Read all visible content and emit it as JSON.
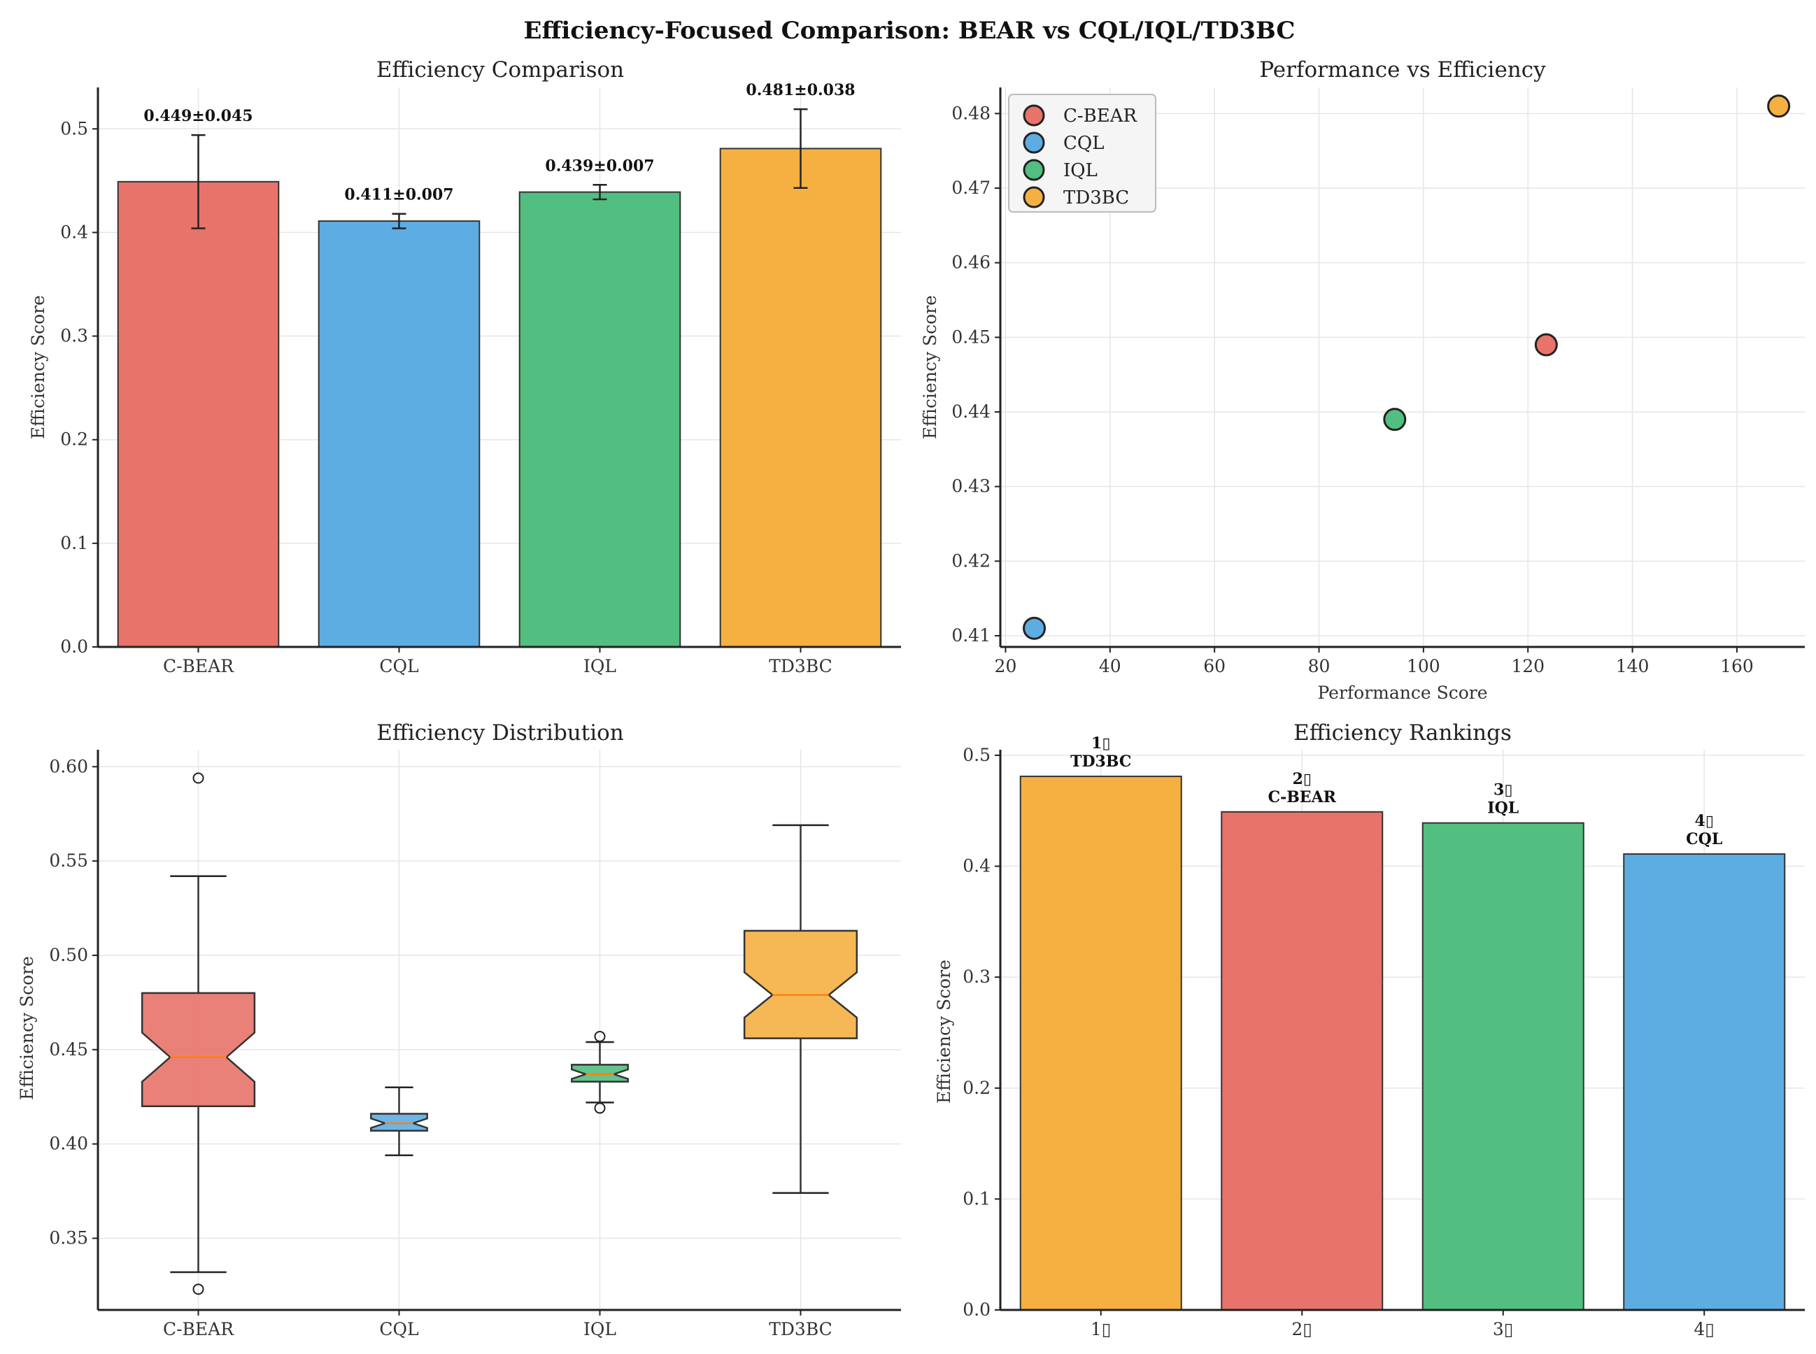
{
  "suptitle": "Efficiency-Focused Comparison: BEAR vs CQL/IQL/TD3BC",
  "colors": {
    "C-BEAR": "#e8736a",
    "CQL": "#5dade2",
    "IQL": "#52be80",
    "TD3BC": "#f5b041",
    "median": "#ff7f0e"
  },
  "chart_data": [
    {
      "type": "bar",
      "title": "Efficiency Comparison",
      "xlabel": "",
      "ylabel": "Efficiency Score",
      "categories": [
        "C-BEAR",
        "CQL",
        "IQL",
        "TD3BC"
      ],
      "values": [
        0.449,
        0.411,
        0.439,
        0.481
      ],
      "errors": [
        0.045,
        0.007,
        0.007,
        0.038
      ],
      "value_labels": [
        "0.449±0.045",
        "0.411±0.007",
        "0.439±0.007",
        "0.481±0.038"
      ],
      "ylim": [
        0,
        0.54
      ],
      "yticks": [
        "0.0",
        "0.1",
        "0.2",
        "0.3",
        "0.4",
        "0.5"
      ],
      "grid": true
    },
    {
      "type": "scatter",
      "title": "Performance vs Efficiency",
      "xlabel": "Performance Score",
      "ylabel": "Efficiency Score",
      "series": [
        {
          "name": "C-BEAR",
          "x": [
            123.5
          ],
          "y": [
            0.449
          ]
        },
        {
          "name": "CQL",
          "x": [
            25.5
          ],
          "y": [
            0.411
          ]
        },
        {
          "name": "IQL",
          "x": [
            94.5
          ],
          "y": [
            0.439
          ]
        },
        {
          "name": "TD3BC",
          "x": [
            168
          ],
          "y": [
            0.481
          ]
        }
      ],
      "xlim": [
        19,
        173
      ],
      "ylim": [
        0.4085,
        0.4835
      ],
      "xticks": [
        "20",
        "40",
        "60",
        "80",
        "100",
        "120",
        "140",
        "160"
      ],
      "yticks": [
        "0.41",
        "0.42",
        "0.43",
        "0.44",
        "0.45",
        "0.46",
        "0.47",
        "0.48"
      ],
      "legend": "top-left",
      "grid": true
    },
    {
      "type": "box",
      "title": "Efficiency Distribution",
      "xlabel": "",
      "ylabel": "Efficiency Score",
      "categories": [
        "C-BEAR",
        "CQL",
        "IQL",
        "TD3BC"
      ],
      "boxes": [
        {
          "whisker_low": 0.332,
          "q1": 0.42,
          "median": 0.446,
          "q3": 0.48,
          "whisker_high": 0.542,
          "notch_low": 0.433,
          "notch_high": 0.459,
          "outliers": [
            0.594,
            0.323
          ]
        },
        {
          "whisker_low": 0.394,
          "q1": 0.407,
          "median": 0.411,
          "q3": 0.416,
          "whisker_high": 0.43,
          "notch_low": 0.4085,
          "notch_high": 0.4135,
          "outliers": []
        },
        {
          "whisker_low": 0.422,
          "q1": 0.433,
          "median": 0.437,
          "q3": 0.442,
          "whisker_high": 0.454,
          "notch_low": 0.4345,
          "notch_high": 0.4395,
          "outliers": [
            0.457,
            0.419
          ]
        },
        {
          "whisker_low": 0.374,
          "q1": 0.456,
          "median": 0.479,
          "q3": 0.513,
          "whisker_high": 0.569,
          "notch_low": 0.467,
          "notch_high": 0.491,
          "outliers": []
        }
      ],
      "ylim": [
        0.312,
        0.609
      ],
      "yticks": [
        "0.35",
        "0.40",
        "0.45",
        "0.50",
        "0.55",
        "0.60"
      ],
      "grid": true
    },
    {
      "type": "bar",
      "title": "Efficiency Rankings",
      "xlabel": "",
      "ylabel": "Efficiency Score",
      "categories": [
        "1▯",
        "2▯",
        "3▯",
        "4▯"
      ],
      "values": [
        0.481,
        0.449,
        0.439,
        0.411
      ],
      "bar_colors": [
        "TD3BC",
        "C-BEAR",
        "IQL",
        "CQL"
      ],
      "rank_labels": [
        "1▯",
        "2▯",
        "3▯",
        "4▯"
      ],
      "name_labels": [
        "TD3BC",
        "C-BEAR",
        "IQL",
        "CQL"
      ],
      "ylim": [
        0,
        0.505
      ],
      "yticks": [
        "0.0",
        "0.1",
        "0.2",
        "0.3",
        "0.4",
        "0.5"
      ],
      "grid": true
    }
  ]
}
